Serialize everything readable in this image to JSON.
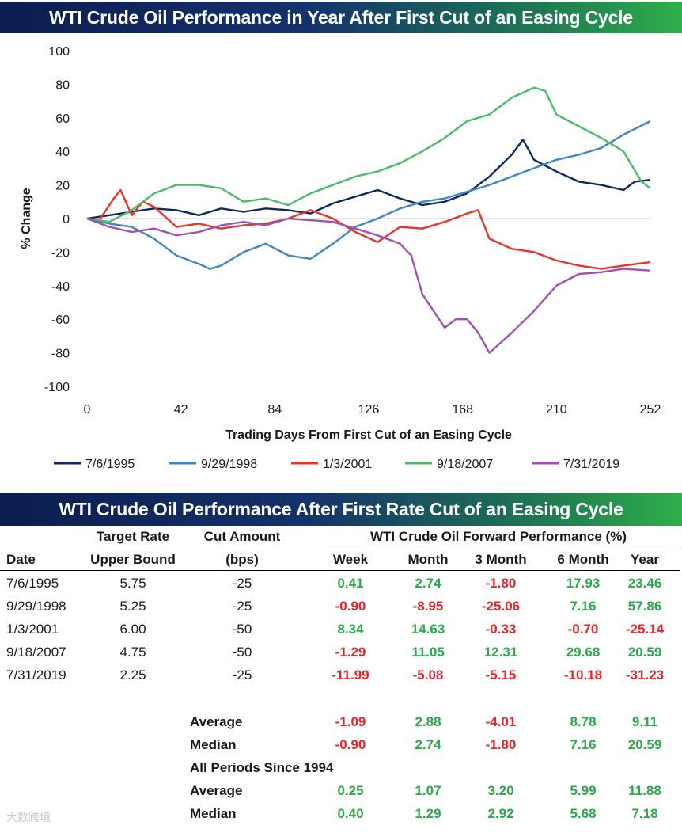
{
  "chart_data": {
    "type": "line",
    "title": "WTI Crude Oil Performance in Year After First Cut of an Easing Cycle",
    "xlabel": "Trading Days From First Cut of an Easing Cycle",
    "ylabel": "% Change",
    "xlim": [
      0,
      252
    ],
    "ylim": [
      -100,
      100
    ],
    "xticks": [
      0,
      42,
      84,
      126,
      168,
      210,
      252
    ],
    "yticks": [
      100,
      80,
      60,
      40,
      20,
      0,
      -20,
      -40,
      -60,
      -80,
      -100
    ],
    "xtick_labels": [
      "0",
      "42",
      "84",
      "126",
      "168",
      "210",
      "252"
    ],
    "ytick_labels": [
      "100",
      "80",
      "60",
      "40",
      "20",
      "0",
      "-20",
      "-40",
      "-60",
      "-80",
      "-100"
    ],
    "legend_position": "bottom",
    "series": [
      {
        "name": "7/6/1995",
        "color": "#0e2a5c",
        "x": [
          0,
          10,
          20,
          30,
          40,
          50,
          60,
          70,
          80,
          90,
          100,
          110,
          120,
          130,
          140,
          150,
          160,
          170,
          180,
          190,
          195,
          200,
          210,
          220,
          230,
          240,
          245,
          252
        ],
        "y": [
          0,
          2,
          4,
          6,
          5,
          2,
          6,
          4,
          6,
          5,
          3,
          9,
          13,
          17,
          12,
          8,
          10,
          15,
          25,
          38,
          47,
          35,
          28,
          22,
          20,
          17,
          22,
          23
        ]
      },
      {
        "name": "9/29/1998",
        "color": "#3d87c3",
        "x": [
          0,
          10,
          20,
          30,
          40,
          50,
          55,
          60,
          70,
          80,
          90,
          100,
          110,
          120,
          130,
          140,
          150,
          160,
          170,
          180,
          190,
          200,
          210,
          220,
          230,
          240,
          252
        ],
        "y": [
          0,
          -3,
          -5,
          -12,
          -22,
          -27,
          -30,
          -28,
          -20,
          -15,
          -22,
          -24,
          -15,
          -5,
          0,
          6,
          10,
          12,
          16,
          20,
          25,
          30,
          35,
          38,
          42,
          50,
          58
        ]
      },
      {
        "name": "1/3/2001",
        "color": "#e8332a",
        "x": [
          0,
          5,
          12,
          15,
          20,
          25,
          30,
          40,
          50,
          60,
          70,
          80,
          90,
          100,
          110,
          120,
          130,
          140,
          150,
          160,
          170,
          175,
          180,
          190,
          200,
          210,
          220,
          230,
          240,
          252
        ],
        "y": [
          0,
          -2,
          12,
          17,
          2,
          10,
          7,
          -5,
          -3,
          -6,
          -4,
          -3,
          0,
          5,
          0,
          -8,
          -14,
          -5,
          -6,
          -2,
          3,
          5,
          -12,
          -18,
          -20,
          -25,
          -28,
          -30,
          -28,
          -26
        ]
      },
      {
        "name": "9/18/2007",
        "color": "#4cba6b",
        "x": [
          0,
          10,
          20,
          30,
          40,
          50,
          60,
          70,
          80,
          90,
          100,
          110,
          120,
          130,
          140,
          150,
          160,
          170,
          180,
          190,
          200,
          205,
          210,
          220,
          230,
          240,
          248,
          252
        ],
        "y": [
          0,
          -2,
          5,
          15,
          20,
          20,
          18,
          10,
          12,
          8,
          15,
          20,
          25,
          28,
          33,
          40,
          48,
          58,
          62,
          72,
          78,
          76,
          62,
          55,
          48,
          40,
          22,
          18
        ]
      },
      {
        "name": "7/31/2019",
        "color": "#a050b0",
        "x": [
          0,
          10,
          20,
          30,
          40,
          50,
          60,
          70,
          80,
          90,
          100,
          110,
          120,
          130,
          140,
          145,
          150,
          155,
          160,
          165,
          170,
          175,
          180,
          190,
          200,
          210,
          220,
          230,
          240,
          252
        ],
        "y": [
          0,
          -5,
          -8,
          -6,
          -10,
          -8,
          -4,
          -2,
          -4,
          0,
          -1,
          -2,
          -6,
          -10,
          -15,
          -22,
          -45,
          -55,
          -65,
          -60,
          -60,
          -68,
          -80,
          -68,
          -55,
          -40,
          -33,
          -32,
          -30,
          -31
        ]
      }
    ]
  },
  "banner_top": "WTI Crude Oil Performance in Year After First Cut of an Easing Cycle",
  "banner_bottom": "WTI Crude Oil Performance After First Rate Cut of an Easing Cycle",
  "table": {
    "headers": {
      "date": "Date",
      "target_line1": "Target Rate",
      "target_line2": "Upper Bound",
      "cut_line1": "Cut Amount",
      "cut_line2": "(bps)",
      "forward_group": "WTI Crude Oil Forward Performance (%)",
      "week": "Week",
      "month": "Month",
      "month3": "3 Month",
      "month6": "6 Month",
      "year": "Year"
    },
    "rows": [
      {
        "date": "7/6/1995",
        "target": "5.75",
        "cut": "-25",
        "week": "0.41",
        "month": "2.74",
        "month3": "-1.80",
        "month6": "17.93",
        "year": "23.46"
      },
      {
        "date": "9/29/1998",
        "target": "5.25",
        "cut": "-25",
        "week": "-0.90",
        "month": "-8.95",
        "month3": "-25.06",
        "month6": "7.16",
        "year": "57.86"
      },
      {
        "date": "1/3/2001",
        "target": "6.00",
        "cut": "-50",
        "week": "8.34",
        "month": "14.63",
        "month3": "-0.33",
        "month6": "-0.70",
        "year": "-25.14"
      },
      {
        "date": "9/18/2007",
        "target": "4.75",
        "cut": "-50",
        "week": "-1.29",
        "month": "11.05",
        "month3": "12.31",
        "month6": "29.68",
        "year": "20.59"
      },
      {
        "date": "7/31/2019",
        "target": "2.25",
        "cut": "-25",
        "week": "-11.99",
        "month": "-5.08",
        "month3": "-5.15",
        "month6": "-10.18",
        "year": "-31.23"
      }
    ],
    "summary": [
      {
        "label": "Average",
        "week": "-1.09",
        "month": "2.88",
        "month3": "-4.01",
        "month6": "8.78",
        "year": "9.11"
      },
      {
        "label": "Median",
        "week": "-0.90",
        "month": "2.74",
        "month3": "-1.80",
        "month6": "7.16",
        "year": "20.59"
      }
    ],
    "since_label": "All Periods Since 1994",
    "since": [
      {
        "label": "Average",
        "week": "0.25",
        "month": "1.07",
        "month3": "3.20",
        "month6": "5.99",
        "year": "11.88"
      },
      {
        "label": "Median",
        "week": "0.40",
        "month": "1.29",
        "month3": "2.92",
        "month6": "5.68",
        "year": "7.18"
      }
    ]
  },
  "watermark": "大数跨境",
  "colors": {
    "positive": "#2aa84a",
    "negative": "#e0262b",
    "banner_start": "#0c1d4f",
    "banner_end": "#2fae4a"
  }
}
